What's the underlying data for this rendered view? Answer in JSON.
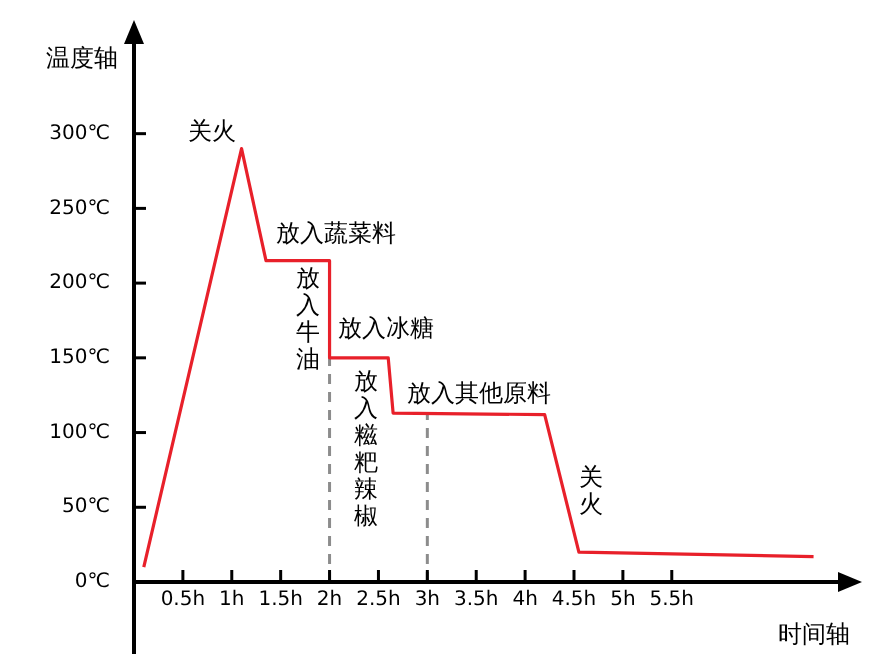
{
  "chart_data": {
    "type": "line",
    "xlabel": "时间轴",
    "ylabel": "温度轴",
    "x": [
      0.1,
      1.1,
      1.35,
      2,
      2,
      2.6,
      2.65,
      4.2,
      4.55,
      6.95
    ],
    "series": [
      {
        "color": "#e8202a",
        "values": [
          10,
          290,
          215,
          215,
          150,
          150,
          113,
          112,
          20,
          17
        ]
      }
    ],
    "xlim": [
      0,
      7.2
    ],
    "ylim": [
      0,
      360
    ],
    "xticks": [
      {
        "value": 0.5,
        "label": "0.5h"
      },
      {
        "value": 1,
        "label": "1h"
      },
      {
        "value": 1.5,
        "label": "1.5h"
      },
      {
        "value": 2,
        "label": "2h"
      },
      {
        "value": 2.5,
        "label": "2.5h"
      },
      {
        "value": 3,
        "label": "3h"
      },
      {
        "value": 3.5,
        "label": "3.5h"
      },
      {
        "value": 4,
        "label": "4h"
      },
      {
        "value": 4.5,
        "label": "4.5h"
      },
      {
        "value": 5,
        "label": "5h"
      },
      {
        "value": 5.5,
        "label": "5.5h"
      }
    ],
    "yticks": [
      {
        "value": 0,
        "label": "0℃"
      },
      {
        "value": 50,
        "label": "50℃"
      },
      {
        "value": 100,
        "label": "100℃"
      },
      {
        "value": 150,
        "label": "150℃"
      },
      {
        "value": 200,
        "label": "200℃"
      },
      {
        "value": 250,
        "label": "250℃"
      },
      {
        "value": 300,
        "label": "300℃"
      }
    ],
    "ref_lines": [
      {
        "axis": "x",
        "value": 2,
        "color": "#8c8c8c",
        "line_style": "dashed"
      },
      {
        "axis": "x",
        "value": 3,
        "color": "#8c8c8c",
        "line_style": "dashed"
      }
    ],
    "annotations": [
      {
        "text": "关火",
        "x": 1.1,
        "y": 290
      },
      {
        "text": "放入蔬菜料",
        "x": 1.35,
        "y": 215
      },
      {
        "text": "放入牛油",
        "x": 2,
        "y": 215
      },
      {
        "text": "放入冰糖",
        "x": 2,
        "y": 150
      },
      {
        "text": "放入糍粑辣椒",
        "x": 2.6,
        "y": 150
      },
      {
        "text": "放入其他原料",
        "x": 2.65,
        "y": 113
      },
      {
        "text": "关火",
        "x": 4.2,
        "y": 112
      }
    ],
    "grid": false,
    "legend": false,
    "marker": "none",
    "line_style": "solid"
  }
}
